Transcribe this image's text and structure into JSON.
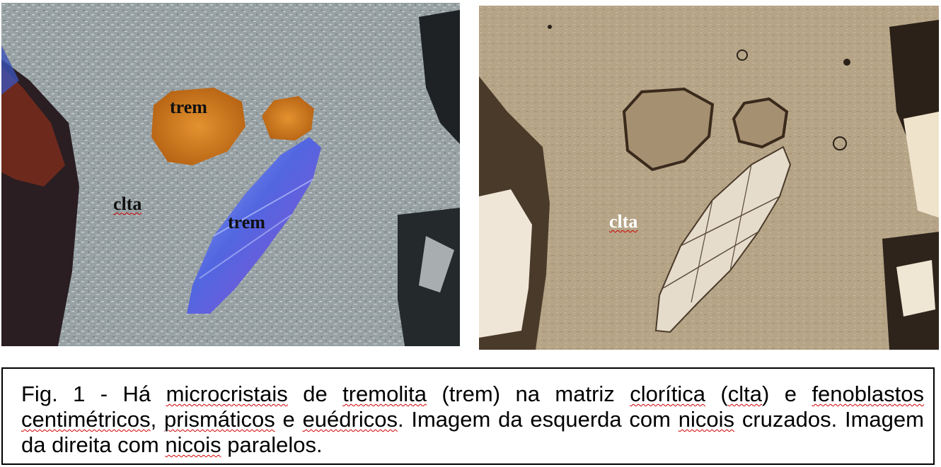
{
  "figure": {
    "left_image": {
      "labels": {
        "trem_top": "trem",
        "trem_blue": "trem",
        "clta": "clta"
      },
      "palette": {
        "matrix": "#9aa3a6",
        "trem_orange": "#d07a1e",
        "trem_blue": "#5d6fd8",
        "dark_mineral": "#2a1e22"
      }
    },
    "right_image": {
      "labels": {
        "clta": "clta"
      },
      "palette": {
        "matrix": "#b8a68a",
        "crystal_light": "#e8dccb",
        "outline_dark": "#3a2a1c"
      }
    },
    "caption": {
      "segments": [
        "Fig. 1 - Há ",
        "microcristais",
        " de ",
        "tremolita",
        " (trem) na matriz ",
        "clorítica",
        " (",
        "clta",
        ") e ",
        "fenoblastos",
        " ",
        "centimétricos",
        ", ",
        "prismáticos",
        " e ",
        "euédricos",
        ". Imagem da esquerda com ",
        "nicois",
        " cruzados. Imagem da direita com ",
        "nicois",
        " paralelos."
      ]
    }
  }
}
